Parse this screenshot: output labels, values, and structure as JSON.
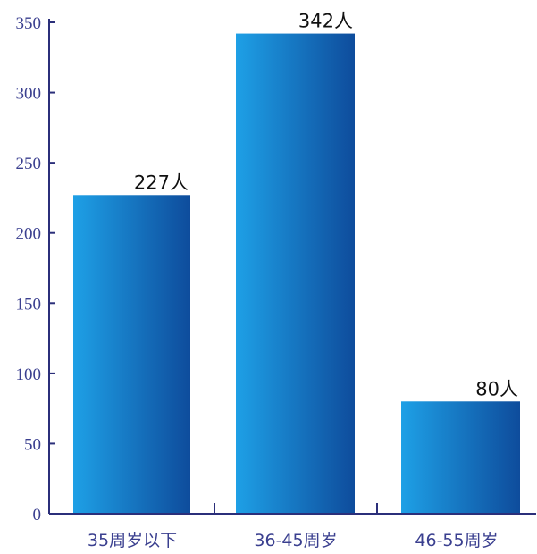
{
  "chart_data": {
    "type": "bar",
    "categories": [
      "35周岁以下",
      "36-45周岁",
      "46-55周岁"
    ],
    "values": [
      227,
      342,
      80
    ],
    "data_labels": [
      "227人",
      "342人",
      "80人"
    ],
    "title": "",
    "xlabel": "",
    "ylabel": "",
    "ylim": [
      0,
      350
    ],
    "yticks": [
      0,
      50,
      100,
      150,
      200,
      250,
      300,
      350
    ],
    "grid": false,
    "legend": "none",
    "colors": {
      "bar_light": "#1ea0e6",
      "bar_dark": "#0e4c9c",
      "axis": "#2b2f7a",
      "tick_text": "#3a3f8f",
      "label_text": "#111111"
    }
  }
}
